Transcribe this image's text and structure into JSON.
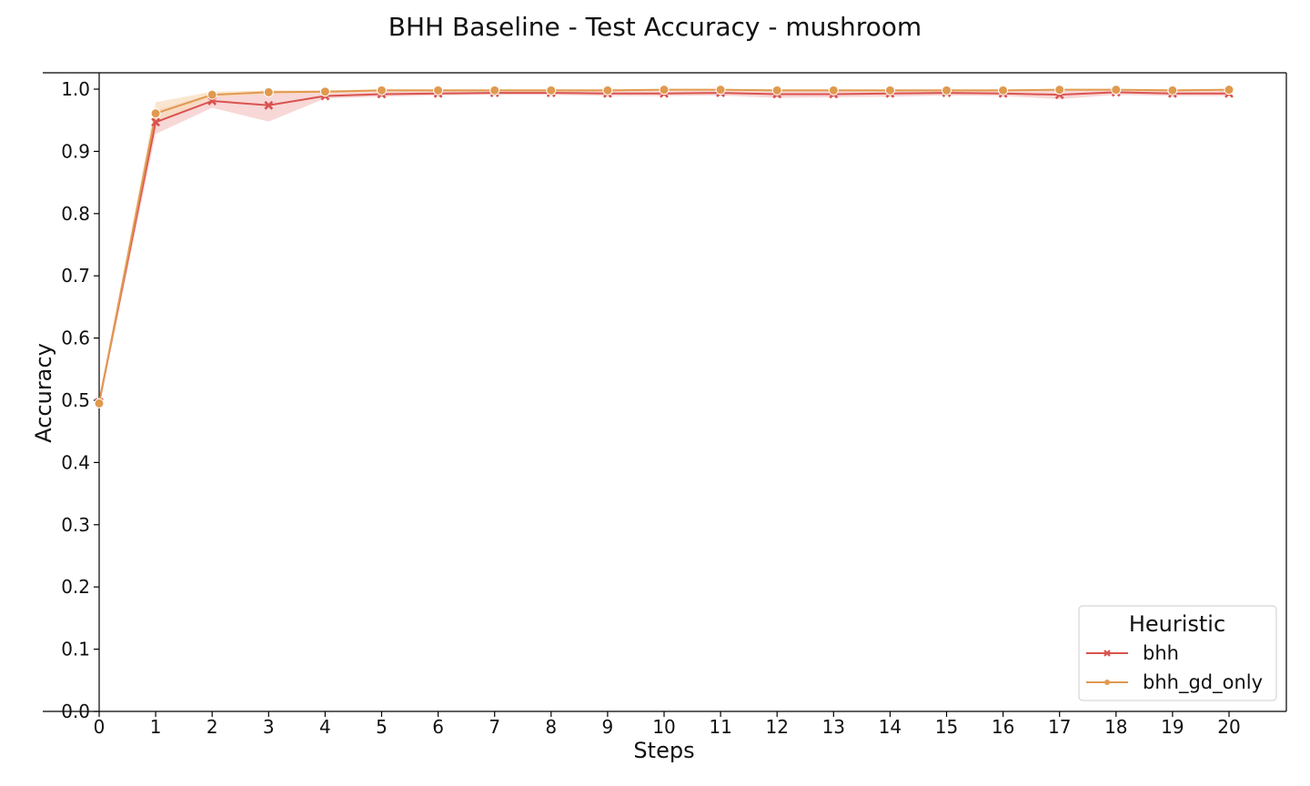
{
  "chart_data": {
    "type": "line",
    "title": "BHH Baseline - Test Accuracy - mushroom",
    "xlabel": "Steps",
    "ylabel": "Accuracy",
    "xlim": [
      0,
      20
    ],
    "ylim": [
      0.0,
      1.0
    ],
    "x_ticks": [
      "0",
      "1",
      "2",
      "3",
      "4",
      "5",
      "6",
      "7",
      "8",
      "9",
      "10",
      "11",
      "12",
      "13",
      "14",
      "15",
      "16",
      "17",
      "18",
      "19",
      "20"
    ],
    "y_ticks": [
      "0.0",
      "0.1",
      "0.2",
      "0.3",
      "0.4",
      "0.5",
      "0.6",
      "0.7",
      "0.8",
      "0.9",
      "1.0"
    ],
    "grid": false,
    "legend": {
      "title": "Heuristic",
      "placement": "lower-right"
    },
    "x": [
      0,
      1,
      2,
      3,
      4,
      5,
      6,
      7,
      8,
      9,
      10,
      11,
      12,
      13,
      14,
      15,
      16,
      17,
      18,
      19,
      20
    ],
    "series": [
      {
        "name": "bhh",
        "color": "#d9534f",
        "band_color": "#f5c6c6",
        "marker": "x",
        "values": [
          0.497,
          0.947,
          0.981,
          0.974,
          0.989,
          0.992,
          0.993,
          0.994,
          0.994,
          0.993,
          0.993,
          0.994,
          0.992,
          0.992,
          0.993,
          0.994,
          0.993,
          0.991,
          0.995,
          0.993,
          0.993
        ],
        "lower": [
          0.49,
          0.928,
          0.97,
          0.948,
          0.985,
          0.988,
          0.99,
          0.991,
          0.991,
          0.989,
          0.989,
          0.99,
          0.986,
          0.987,
          0.988,
          0.99,
          0.989,
          0.984,
          0.991,
          0.989,
          0.989
        ],
        "upper": [
          0.504,
          0.967,
          0.992,
          0.998,
          0.995,
          0.996,
          0.997,
          0.997,
          0.997,
          0.997,
          0.997,
          0.998,
          0.997,
          0.997,
          0.998,
          0.998,
          0.997,
          0.998,
          0.999,
          0.997,
          0.997
        ]
      },
      {
        "name": "bhh_gd_only",
        "color": "#e09a4f",
        "band_color": "#f8dcbc",
        "marker": "o",
        "values": [
          0.495,
          0.961,
          0.991,
          0.995,
          0.996,
          0.998,
          0.998,
          0.998,
          0.998,
          0.998,
          0.999,
          0.999,
          0.998,
          0.998,
          0.998,
          0.998,
          0.998,
          0.999,
          0.999,
          0.998,
          0.999
        ],
        "lower": [
          0.488,
          0.944,
          0.986,
          0.992,
          0.994,
          0.996,
          0.996,
          0.996,
          0.996,
          0.996,
          0.997,
          0.997,
          0.996,
          0.996,
          0.996,
          0.996,
          0.996,
          0.997,
          0.997,
          0.996,
          0.997
        ],
        "upper": [
          0.502,
          0.979,
          0.996,
          0.998,
          0.998,
          1.0,
          1.0,
          1.0,
          1.0,
          1.0,
          1.0,
          1.0,
          1.0,
          1.0,
          1.0,
          1.0,
          1.0,
          1.0,
          1.0,
          1.0,
          1.0
        ]
      }
    ]
  }
}
